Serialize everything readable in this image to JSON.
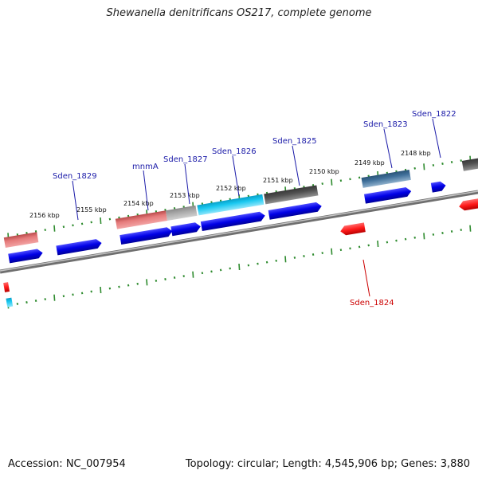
{
  "title": "Shewanella denitrificans OS217, complete genome",
  "footer": {
    "accession": "Accession: NC_007954",
    "summary": "Topology: circular; Length: 4,545,906 bp; Genes: 3,880"
  },
  "colors": {
    "backbone": "#8a8a8a",
    "tick": "#2e8b2e",
    "gene_blue": "#0000e6",
    "gene_label_blue": "#1a1aa8",
    "gene_label_red": "#cc0000",
    "gene_red": "#ff1a1a",
    "pink": "#e57a7a",
    "gray_light": "#a8a8a8",
    "gray_dark": "#505050",
    "cyan": "#19c8f0",
    "steel": "#3f6f9a"
  },
  "scale_labels": [
    "2156 kbp",
    "2155 kbp",
    "2154 kbp",
    "2153 kbp",
    "2152 kbp",
    "2151 kbp",
    "2150 kbp",
    "2149 kbp",
    "2148 kbp"
  ],
  "gene_labels": [
    {
      "text": "Sden_1829",
      "color": "gene_label_blue"
    },
    {
      "text": "mnmA",
      "color": "gene_label_blue"
    },
    {
      "text": "Sden_1827",
      "color": "gene_label_blue"
    },
    {
      "text": "Sden_1826",
      "color": "gene_label_blue"
    },
    {
      "text": "Sden_1825",
      "color": "gene_label_blue"
    },
    {
      "text": "Sden_1823",
      "color": "gene_label_blue"
    },
    {
      "text": "Sden_1822",
      "color": "gene_label_blue"
    },
    {
      "text": "Sden_1824",
      "color": "gene_label_red"
    }
  ]
}
